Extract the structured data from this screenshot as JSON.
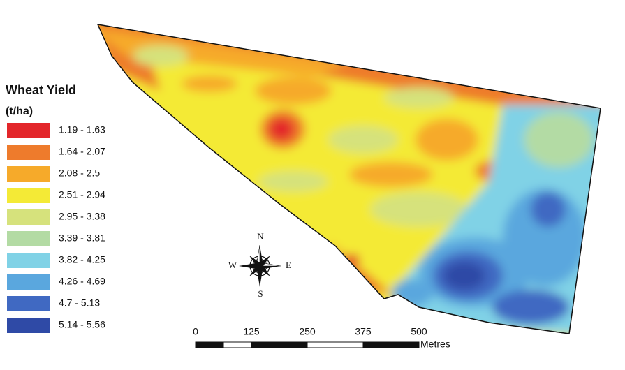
{
  "legend": {
    "title": "Wheat Yield",
    "unit": "(t/ha)",
    "classes": [
      {
        "label": "1.19 - 1.63",
        "color": "#e3262a"
      },
      {
        "label": "1.64 - 2.07",
        "color": "#ee7b2c"
      },
      {
        "label": "2.08 - 2.5",
        "color": "#f6aa2a"
      },
      {
        "label": "2.51 - 2.94",
        "color": "#f4ea36"
      },
      {
        "label": "2.95 - 3.38",
        "color": "#d6e27c"
      },
      {
        "label": "3.39 - 3.81",
        "color": "#b3dba4"
      },
      {
        "label": "3.82 - 4.25",
        "color": "#80d2e6"
      },
      {
        "label": "4.26 - 4.69",
        "color": "#5aa7de"
      },
      {
        "label": "4.7 - 5.13",
        "color": "#4069c2"
      },
      {
        "label": "5.14 - 5.56",
        "color": "#2f4aa6"
      }
    ]
  },
  "compass": {
    "north": "N",
    "south": "S",
    "east": "E",
    "west": "W"
  },
  "scale_bar": {
    "ticks": [
      0,
      125,
      250,
      375,
      500
    ],
    "unit": "Metres"
  }
}
